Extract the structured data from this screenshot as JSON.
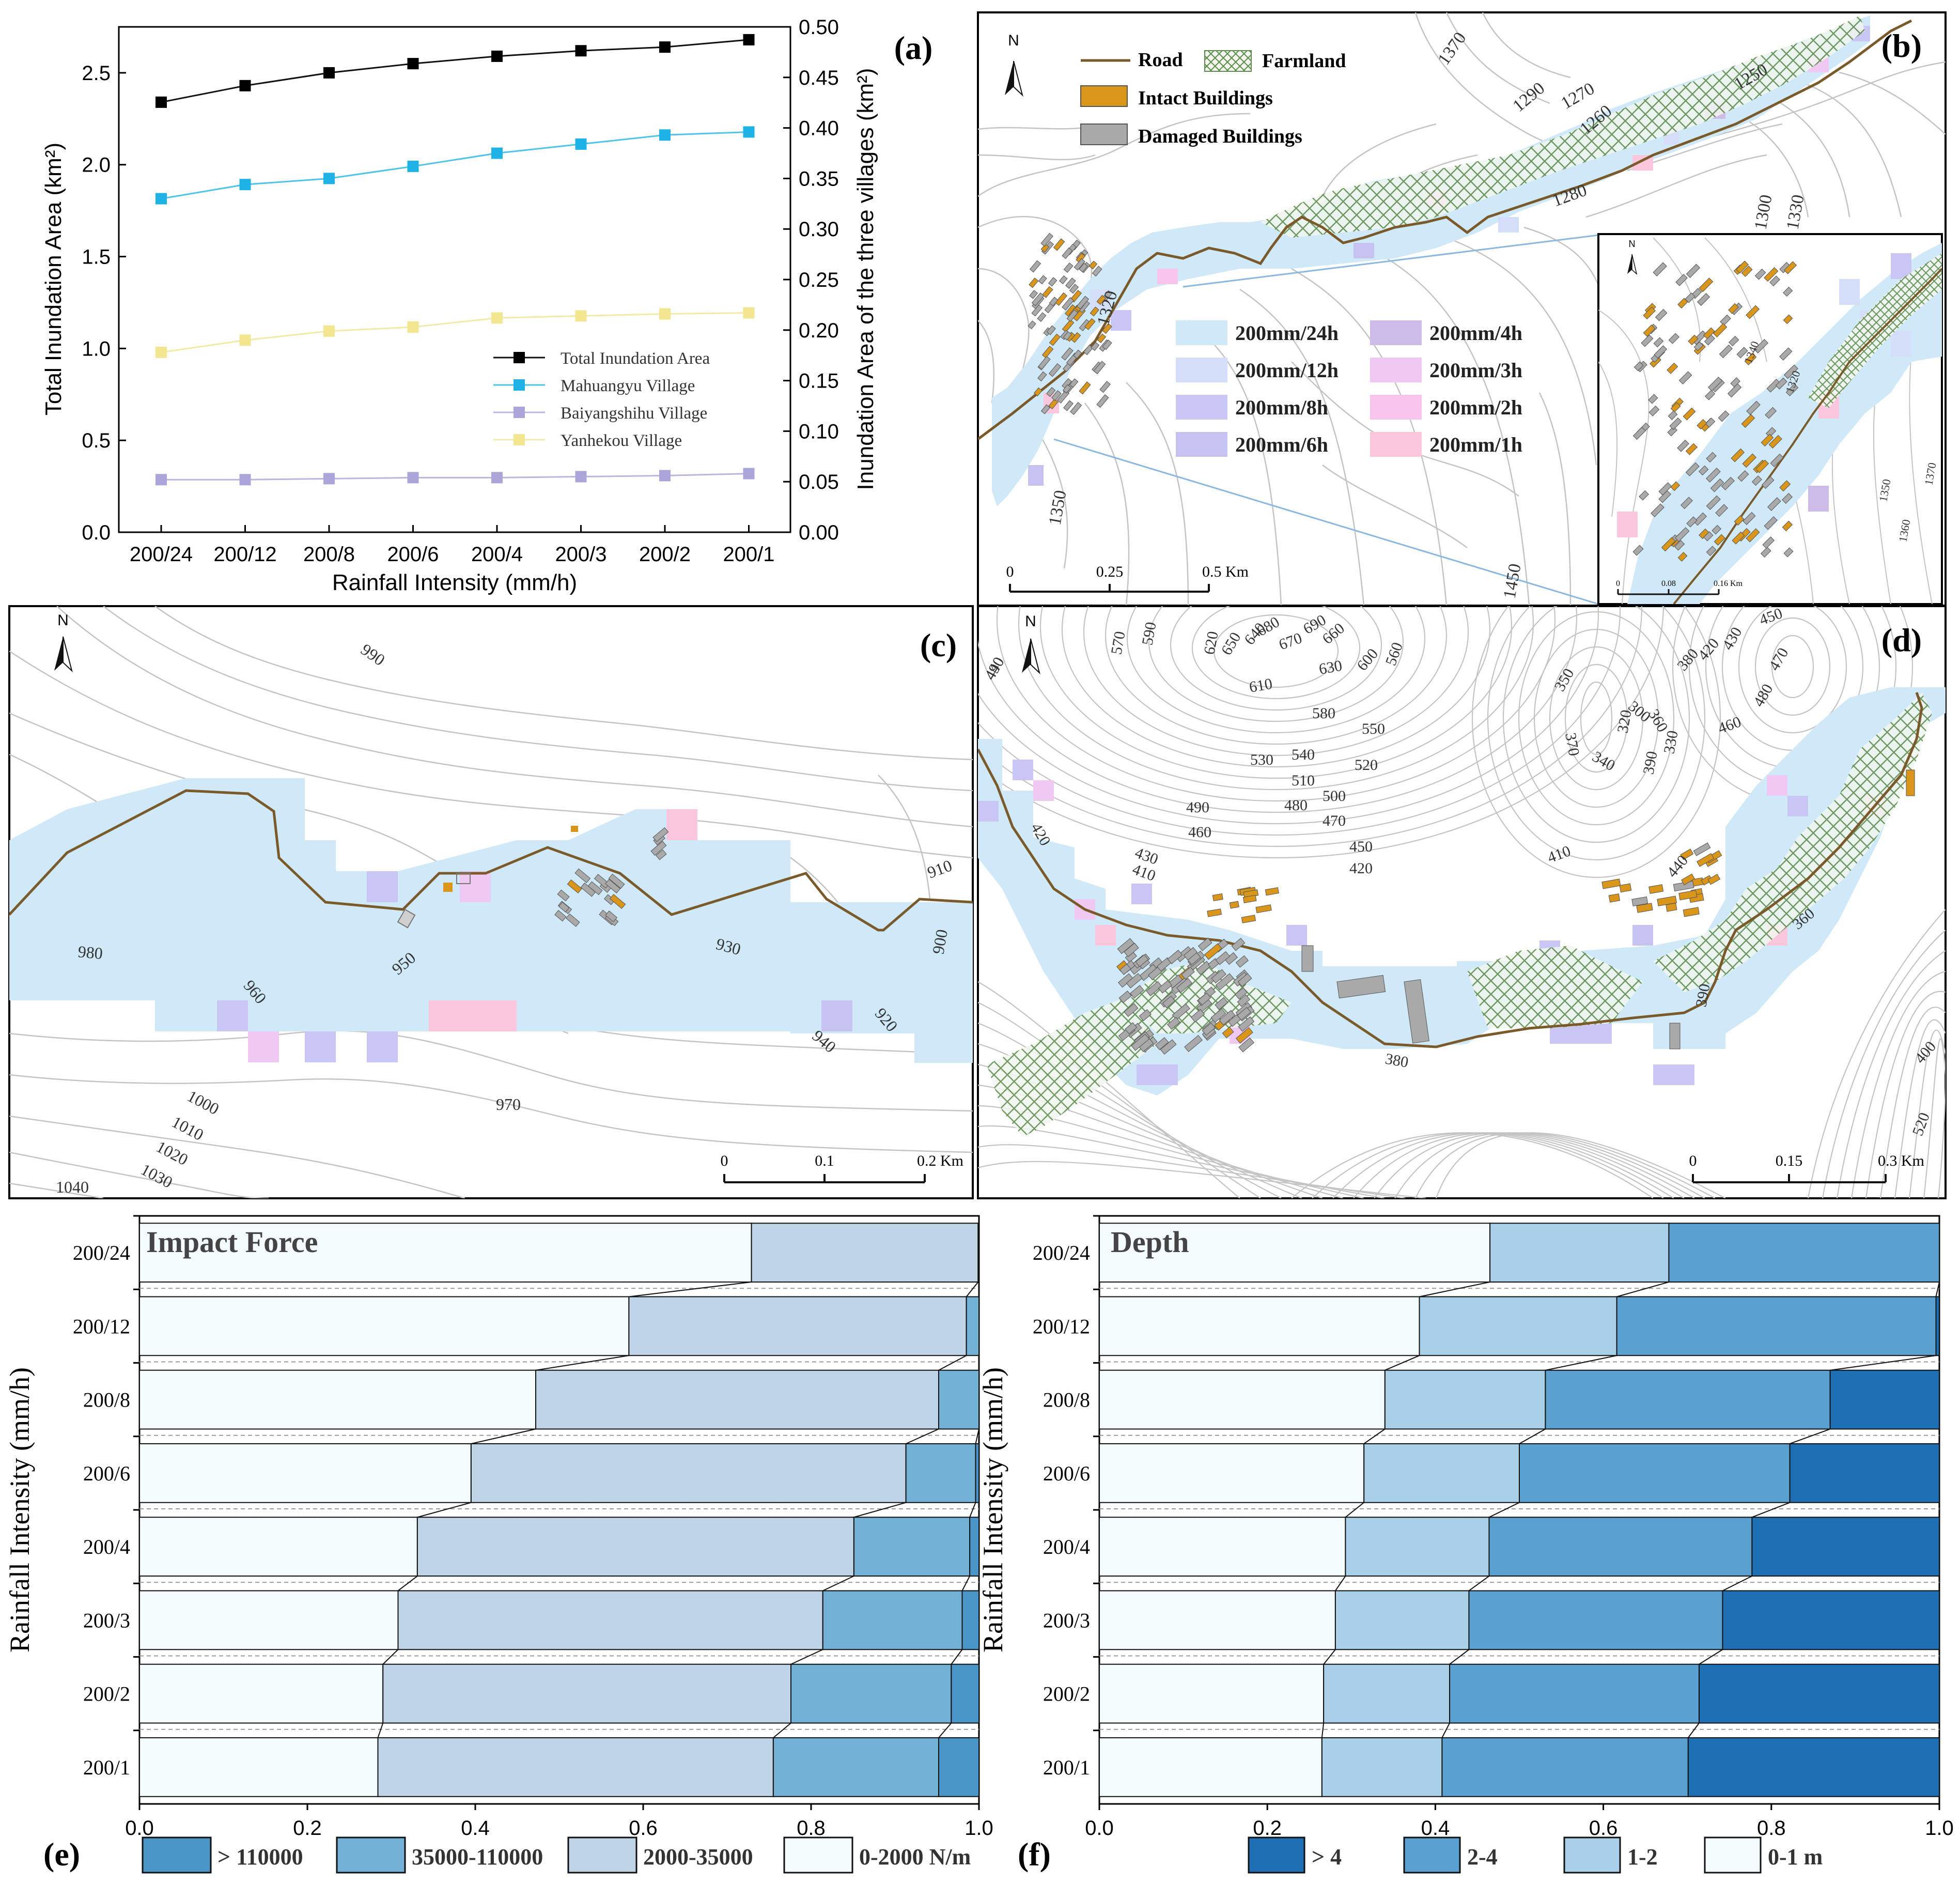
{
  "colors": {
    "inundation_24h": "#cfe9f8",
    "inundation_12h": "#d4def8",
    "inundation_8h": "#c9c6f4",
    "inundation_6h": "#c7c3f0",
    "inundation_4h": "#cdbbe8",
    "inundation_3h": "#f0c9f3",
    "inundation_2h": "#f6c4ec",
    "inundation_1h": "#f9c6de",
    "road": "#7a5a2a",
    "farmland": "#5d8a4a",
    "intact": "#d9961b",
    "damaged": "#a9a9a9",
    "contour": "#bdbdbd"
  },
  "chart_data": [
    {
      "panel": "a",
      "panel_label": "(a)",
      "type": "line",
      "categories": [
        "200/24",
        "200/12",
        "200/8",
        "200/6",
        "200/4",
        "200/3",
        "200/2",
        "200/1"
      ],
      "xlabel": "Rainfall Intensity (mm/h)",
      "ylabel": "Total Inundation Area (km²)",
      "y2label": "Inundation Area of the three villages (km²)",
      "ylim": [
        0,
        2.75
      ],
      "y2lim": [
        0,
        0.5
      ],
      "yticks": [
        "0.0",
        "0.5",
        "1.0",
        "1.5",
        "2.0",
        "2.5"
      ],
      "y2ticks": [
        "0.00",
        "0.05",
        "0.10",
        "0.15",
        "0.20",
        "0.25",
        "0.30",
        "0.35",
        "0.40",
        "0.45",
        "0.50"
      ],
      "series": [
        {
          "name": "Total Inundation Area",
          "axis": "left",
          "color": "#111111",
          "marker_color": "#000000",
          "values": [
            2.34,
            2.43,
            2.5,
            2.55,
            2.59,
            2.62,
            2.64,
            2.68
          ]
        },
        {
          "name": "Mahuangyu Village",
          "axis": "right",
          "color": "#4fc3e8",
          "marker_color": "#1fb2e6",
          "values": [
            0.33,
            0.344,
            0.35,
            0.362,
            0.375,
            0.384,
            0.393,
            0.396
          ]
        },
        {
          "name": "Baiyangshihu Village",
          "axis": "right",
          "color": "#b9b6e0",
          "marker_color": "#aaa6da",
          "values": [
            0.052,
            0.052,
            0.053,
            0.054,
            0.054,
            0.055,
            0.056,
            0.058
          ]
        },
        {
          "name": "Yanhekou Village",
          "axis": "right",
          "color": "#f2eaa8",
          "marker_color": "#f2e690",
          "values": [
            0.178,
            0.19,
            0.199,
            0.203,
            0.212,
            0.214,
            0.216,
            0.217
          ]
        }
      ],
      "legend_position": "lower-right"
    },
    {
      "panel": "e",
      "panel_label": "(e)",
      "type": "bar",
      "stacked": true,
      "orientation": "horizontal",
      "title": "Impact Force",
      "ylabel": "Rainfall Intensity (mm/h)",
      "categories": [
        "200/24",
        "200/12",
        "200/8",
        "200/6",
        "200/4",
        "200/3",
        "200/2",
        "200/1"
      ],
      "xlim": [
        0,
        1
      ],
      "xticks": [
        "0.0",
        "0.2",
        "0.4",
        "0.6",
        "0.8",
        "1.0"
      ],
      "series": [
        {
          "name": "0-2000 N/m",
          "color": "#f4fbfd",
          "values": [
            0.729,
            0.583,
            0.472,
            0.395,
            0.331,
            0.308,
            0.29,
            0.284
          ]
        },
        {
          "name": "2000-35000",
          "color": "#bfd4e6",
          "values": [
            0.27,
            0.402,
            0.48,
            0.518,
            0.52,
            0.506,
            0.486,
            0.471
          ]
        },
        {
          "name": "35000-110000",
          "color": "#72b0d6",
          "values": [
            0.001,
            0.015,
            0.048,
            0.083,
            0.138,
            0.166,
            0.191,
            0.197
          ]
        },
        {
          "name": "> 110000",
          "color": "#4a96c8",
          "values": [
            0.0,
            0.0,
            0.0,
            0.004,
            0.011,
            0.02,
            0.033,
            0.048
          ]
        }
      ],
      "legend_order": [
        "> 110000",
        "35000-110000",
        "2000-35000",
        "0-2000 N/m"
      ],
      "legend_position": "bottom"
    },
    {
      "panel": "f",
      "panel_label": "(f)",
      "type": "bar",
      "stacked": true,
      "orientation": "horizontal",
      "title": "Depth",
      "ylabel": "Rainfall Intensity (mm/h)",
      "categories": [
        "200/24",
        "200/12",
        "200/8",
        "200/6",
        "200/4",
        "200/3",
        "200/2",
        "200/1"
      ],
      "xlim": [
        0,
        1
      ],
      "xticks": [
        "0.0",
        "0.2",
        "0.4",
        "0.6",
        "0.8",
        "1.0"
      ],
      "series": [
        {
          "name": "0-1 m",
          "color": "#f4fbfd",
          "values": [
            0.465,
            0.381,
            0.34,
            0.315,
            0.293,
            0.281,
            0.267,
            0.265
          ]
        },
        {
          "name": "1-2",
          "color": "#a9d0e8",
          "values": [
            0.213,
            0.235,
            0.191,
            0.185,
            0.171,
            0.159,
            0.15,
            0.143
          ]
        },
        {
          "name": "2-4",
          "color": "#5aa1d2",
          "values": [
            0.322,
            0.38,
            0.339,
            0.322,
            0.313,
            0.302,
            0.297,
            0.293
          ]
        },
        {
          "name": "> 4",
          "color": "#1f6fb4",
          "values": [
            0.0,
            0.004,
            0.13,
            0.178,
            0.223,
            0.258,
            0.286,
            0.299
          ]
        }
      ],
      "legend_order": [
        "> 4",
        "2-4",
        "1-2",
        "0-1 m"
      ],
      "legend_position": "bottom"
    }
  ],
  "map_b": {
    "panel_label": "(b)",
    "north": "N",
    "legend": {
      "road": "Road",
      "farmland": "Farmland",
      "intact": "Intact Buildings",
      "damaged": "Damaged Buildings"
    },
    "scenario_legend": [
      "200mm/24h",
      "200mm/12h",
      "200mm/8h",
      "200mm/6h",
      "200mm/4h",
      "200mm/3h",
      "200mm/2h",
      "200mm/1h"
    ],
    "contours": [
      "1370",
      "1290",
      "1270",
      "1260",
      "1250",
      "1280",
      "1300",
      "1330",
      "1320",
      "1350",
      "1450"
    ],
    "scale": [
      "0",
      "0.25",
      "0.5 Km"
    ],
    "inset": {
      "north": "N",
      "scale": [
        "0",
        "0.08",
        "0.16 Km"
      ],
      "contours": [
        "1320",
        "1320",
        "1340",
        "1350",
        "1360",
        "1370"
      ]
    }
  },
  "map_c": {
    "panel_label": "(c)",
    "north": "N",
    "contours": [
      "990",
      "910",
      "980",
      "960",
      "950",
      "930",
      "920",
      "900",
      "940",
      "970",
      "1000",
      "1010",
      "1020",
      "1030",
      "1040"
    ],
    "scale": [
      "0",
      "0.1",
      "0.2 Km"
    ]
  },
  "map_d": {
    "panel_label": "(d)",
    "north": "N",
    "contours": [
      "440",
      "570",
      "590",
      "620",
      "650",
      "640",
      "680",
      "670",
      "690",
      "660",
      "630",
      "600",
      "560",
      "610",
      "580",
      "550",
      "530",
      "540",
      "520",
      "510",
      "500",
      "490",
      "480",
      "470",
      "460",
      "450",
      "420",
      "430",
      "410",
      "410",
      "420",
      "350",
      "370",
      "320",
      "300",
      "360",
      "340",
      "330",
      "390",
      "380",
      "420",
      "430",
      "450",
      "470",
      "480",
      "460",
      "440",
      "360",
      "390",
      "380",
      "400",
      "520",
      "490"
    ],
    "scale": [
      "0",
      "0.15",
      "0.3 Km"
    ]
  }
}
